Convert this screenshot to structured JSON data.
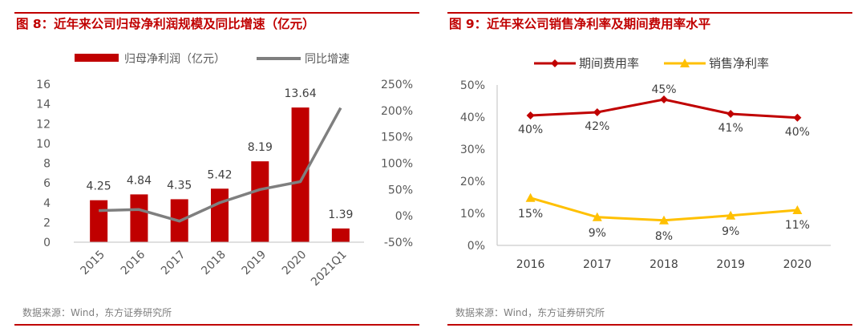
{
  "left_panel": {
    "title": "图 8：近年来公司归母净利润规模及同比增速（亿元）",
    "source": "数据来源：Wind，东方证券研究所"
  },
  "right_panel": {
    "title": "图 9：近年来公司销售净利率及期间费用率水平",
    "source": "数据来源：Wind，东方证券研究所"
  },
  "chart_data": [
    {
      "type": "bar+line",
      "title": "图 8：近年来公司归母净利润规模及同比增速（亿元）",
      "categories": [
        "2015",
        "2016",
        "2017",
        "2018",
        "2019",
        "2020",
        "2021Q1"
      ],
      "series": [
        {
          "name": "归母净利润（亿元）",
          "type": "bar",
          "axis": "left",
          "values": [
            4.25,
            4.84,
            4.35,
            5.42,
            8.19,
            13.64,
            1.39
          ],
          "labels": [
            "4.25",
            "4.84",
            "4.35",
            "5.42",
            "8.19",
            "13.64",
            "1.39"
          ]
        },
        {
          "name": "同比增速",
          "type": "line",
          "axis": "right",
          "values": [
            0.1,
            0.12,
            -0.1,
            0.25,
            0.5,
            0.65,
            2.05
          ]
        }
      ],
      "ylim_left": [
        0,
        16
      ],
      "yticks_left": [
        "0",
        "2",
        "4",
        "6",
        "8",
        "10",
        "12",
        "14",
        "16"
      ],
      "ylim_right": [
        -0.5,
        2.5
      ],
      "yticks_right": [
        "-50%",
        "0%",
        "50%",
        "100%",
        "150%",
        "200%",
        "250%"
      ],
      "legend_position": "top",
      "colors": {
        "bar": "#c00000",
        "line": "#7f7f7f"
      }
    },
    {
      "type": "line",
      "title": "图 9：近年来公司销售净利率及期间费用率水平",
      "categories": [
        "2016",
        "2017",
        "2018",
        "2019",
        "2020"
      ],
      "series": [
        {
          "name": "期间费用率",
          "values": [
            0.405,
            0.415,
            0.455,
            0.41,
            0.398
          ],
          "labels": [
            "40%",
            "42%",
            "45%",
            "41%",
            "40%"
          ],
          "color": "#c00000",
          "marker": "diamond"
        },
        {
          "name": "销售净利率",
          "values": [
            0.148,
            0.088,
            0.078,
            0.093,
            0.11
          ],
          "labels": [
            "15%",
            "9%",
            "8%",
            "9%",
            "11%"
          ],
          "color": "#ffc000",
          "marker": "triangle"
        }
      ],
      "ylim": [
        0,
        0.5
      ],
      "yticks": [
        "0%",
        "10%",
        "20%",
        "30%",
        "40%",
        "50%"
      ],
      "legend_position": "top"
    }
  ]
}
